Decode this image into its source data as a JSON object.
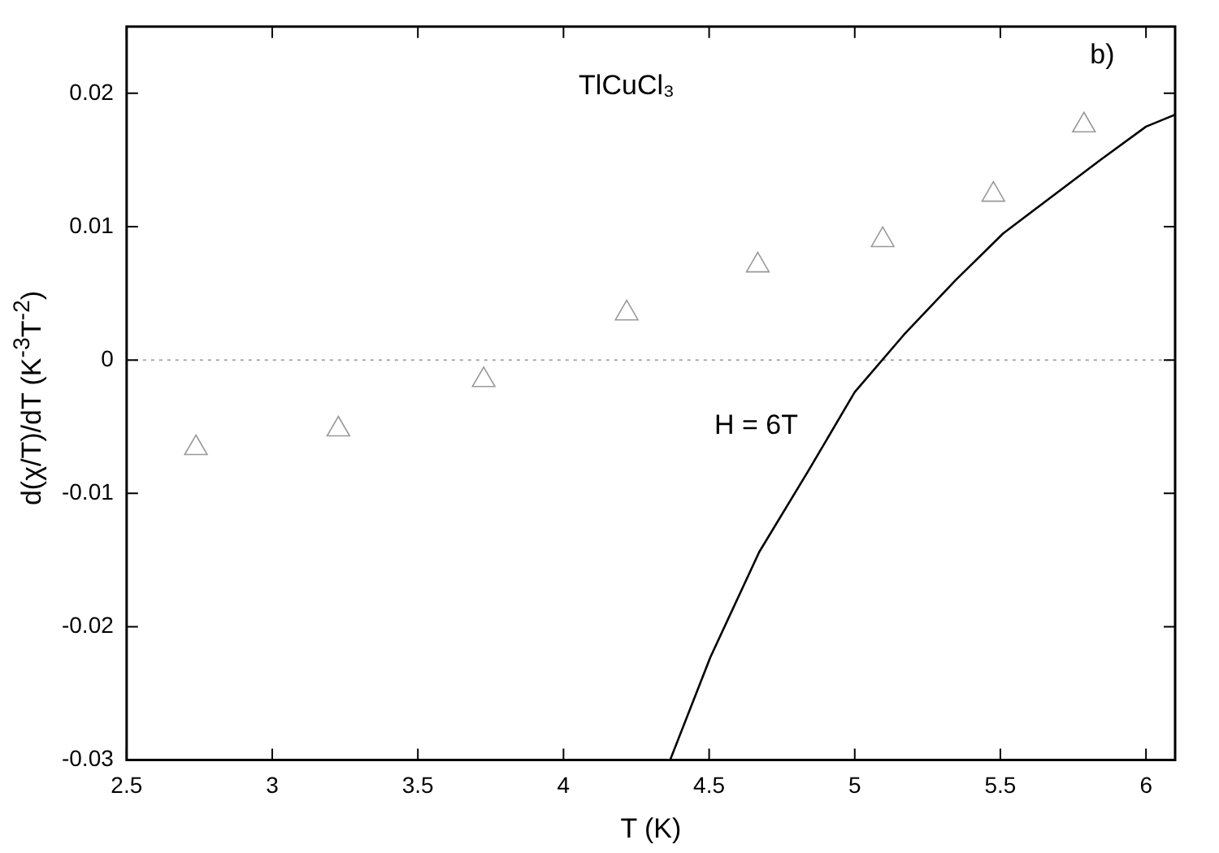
{
  "chart_data": {
    "type": "scatter",
    "xlabel": "T (K)",
    "ylabel": "d(χ/T)/dT (K$^{-3}$T$^{-2}$)",
    "xlim": [
      2.5,
      6.1
    ],
    "xticks": [
      2.5,
      3,
      3.5,
      4,
      4.5,
      5,
      5.5,
      6
    ],
    "ylim": [
      -0.03,
      0.025
    ],
    "yticks": [
      -0.03,
      -0.02,
      -0.01,
      0,
      0.01,
      0.02
    ],
    "grid": false,
    "legend": false,
    "series": [
      {
        "type": "scatter",
        "marker": "triangle",
        "color": "#999999",
        "x": [
          2.738,
          3.227,
          3.726,
          4.217,
          4.667,
          5.096,
          5.476,
          5.787
        ],
        "values": [
          -0.0066,
          -0.0052,
          -0.0015,
          0.0035,
          0.0071,
          0.009,
          0.0124,
          0.0176
        ]
      },
      {
        "type": "line",
        "marker": "none",
        "line_style": "solid",
        "color": "#000000",
        "x": [
          4.366,
          4.504,
          4.672,
          4.841,
          5.0,
          5.169,
          5.347,
          5.51,
          5.843,
          6.0,
          6.1
        ],
        "values": [
          -0.03,
          -0.0223,
          -0.0144,
          -0.0083,
          -0.0024,
          0.0019,
          0.006,
          0.0095,
          0.015,
          0.0175,
          0.0184
        ]
      }
    ],
    "ref_lines": [
      {
        "axis": "y",
        "value": 0,
        "color": "#aaaaaa",
        "line_style": "dotted"
      }
    ],
    "annotations": [
      "TlCuCl₃",
      "b)",
      "H = 6T"
    ]
  }
}
